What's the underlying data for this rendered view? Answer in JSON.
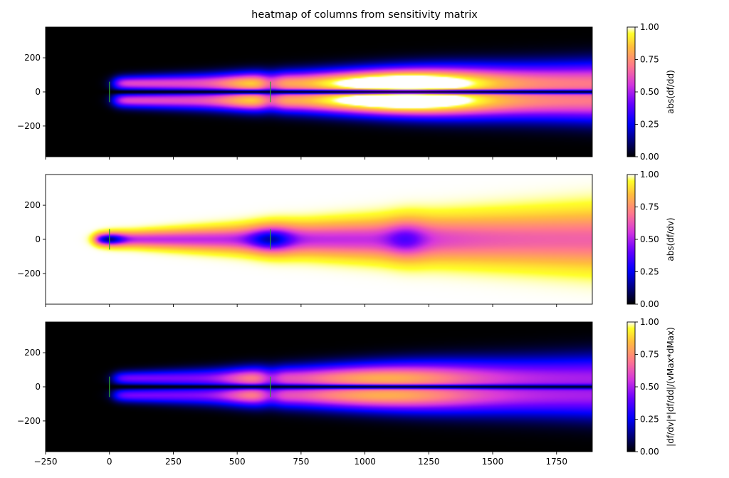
{
  "chart_data": {
    "type": "heatmap",
    "title": "heatmap of columns from sensitivity matrix",
    "xlim": [
      -250,
      1890
    ],
    "ylim": [
      -380,
      380
    ],
    "x_ticks": [
      -250,
      0,
      250,
      500,
      750,
      1000,
      1250,
      1500,
      1750
    ],
    "y_ticks": [
      200,
      0,
      -200
    ],
    "marker_lines": {
      "x": [
        0,
        630
      ],
      "y_range": [
        -60,
        60
      ],
      "color": "#2ca02c"
    },
    "colormap": "gnuplot2",
    "panels": [
      {
        "colorbar_label": "abs(df/dd)",
        "clim": [
          0,
          1
        ],
        "colorbar_ticks": [
          0.0,
          0.25,
          0.5,
          0.75,
          1.0
        ],
        "description_values": {
          "start_x": 20,
          "lobe_y": [
            48,
            -48
          ],
          "peak_x": 1150,
          "peak_value": 1.0
        }
      },
      {
        "colorbar_label": "abs(df/dv)",
        "clim": [
          0,
          1
        ],
        "colorbar_ticks": [
          0.0,
          0.25,
          0.5,
          0.75,
          1.0
        ],
        "description_values": {
          "background_value": 1.0,
          "core_start_x": -60,
          "dark_spots_x": [
            0,
            630
          ],
          "minor_spot_x": 1160
        }
      },
      {
        "colorbar_label": "|df/dv|*|df/dd|/(vMax*dMax)",
        "clim": [
          0,
          1
        ],
        "colorbar_ticks": [
          0.0,
          0.25,
          0.5,
          0.75,
          1.0
        ],
        "description_values": {
          "start_x": 20,
          "lobe_y": [
            50,
            -50
          ],
          "peak_x": 1080,
          "peak_value": 0.7
        }
      }
    ]
  }
}
